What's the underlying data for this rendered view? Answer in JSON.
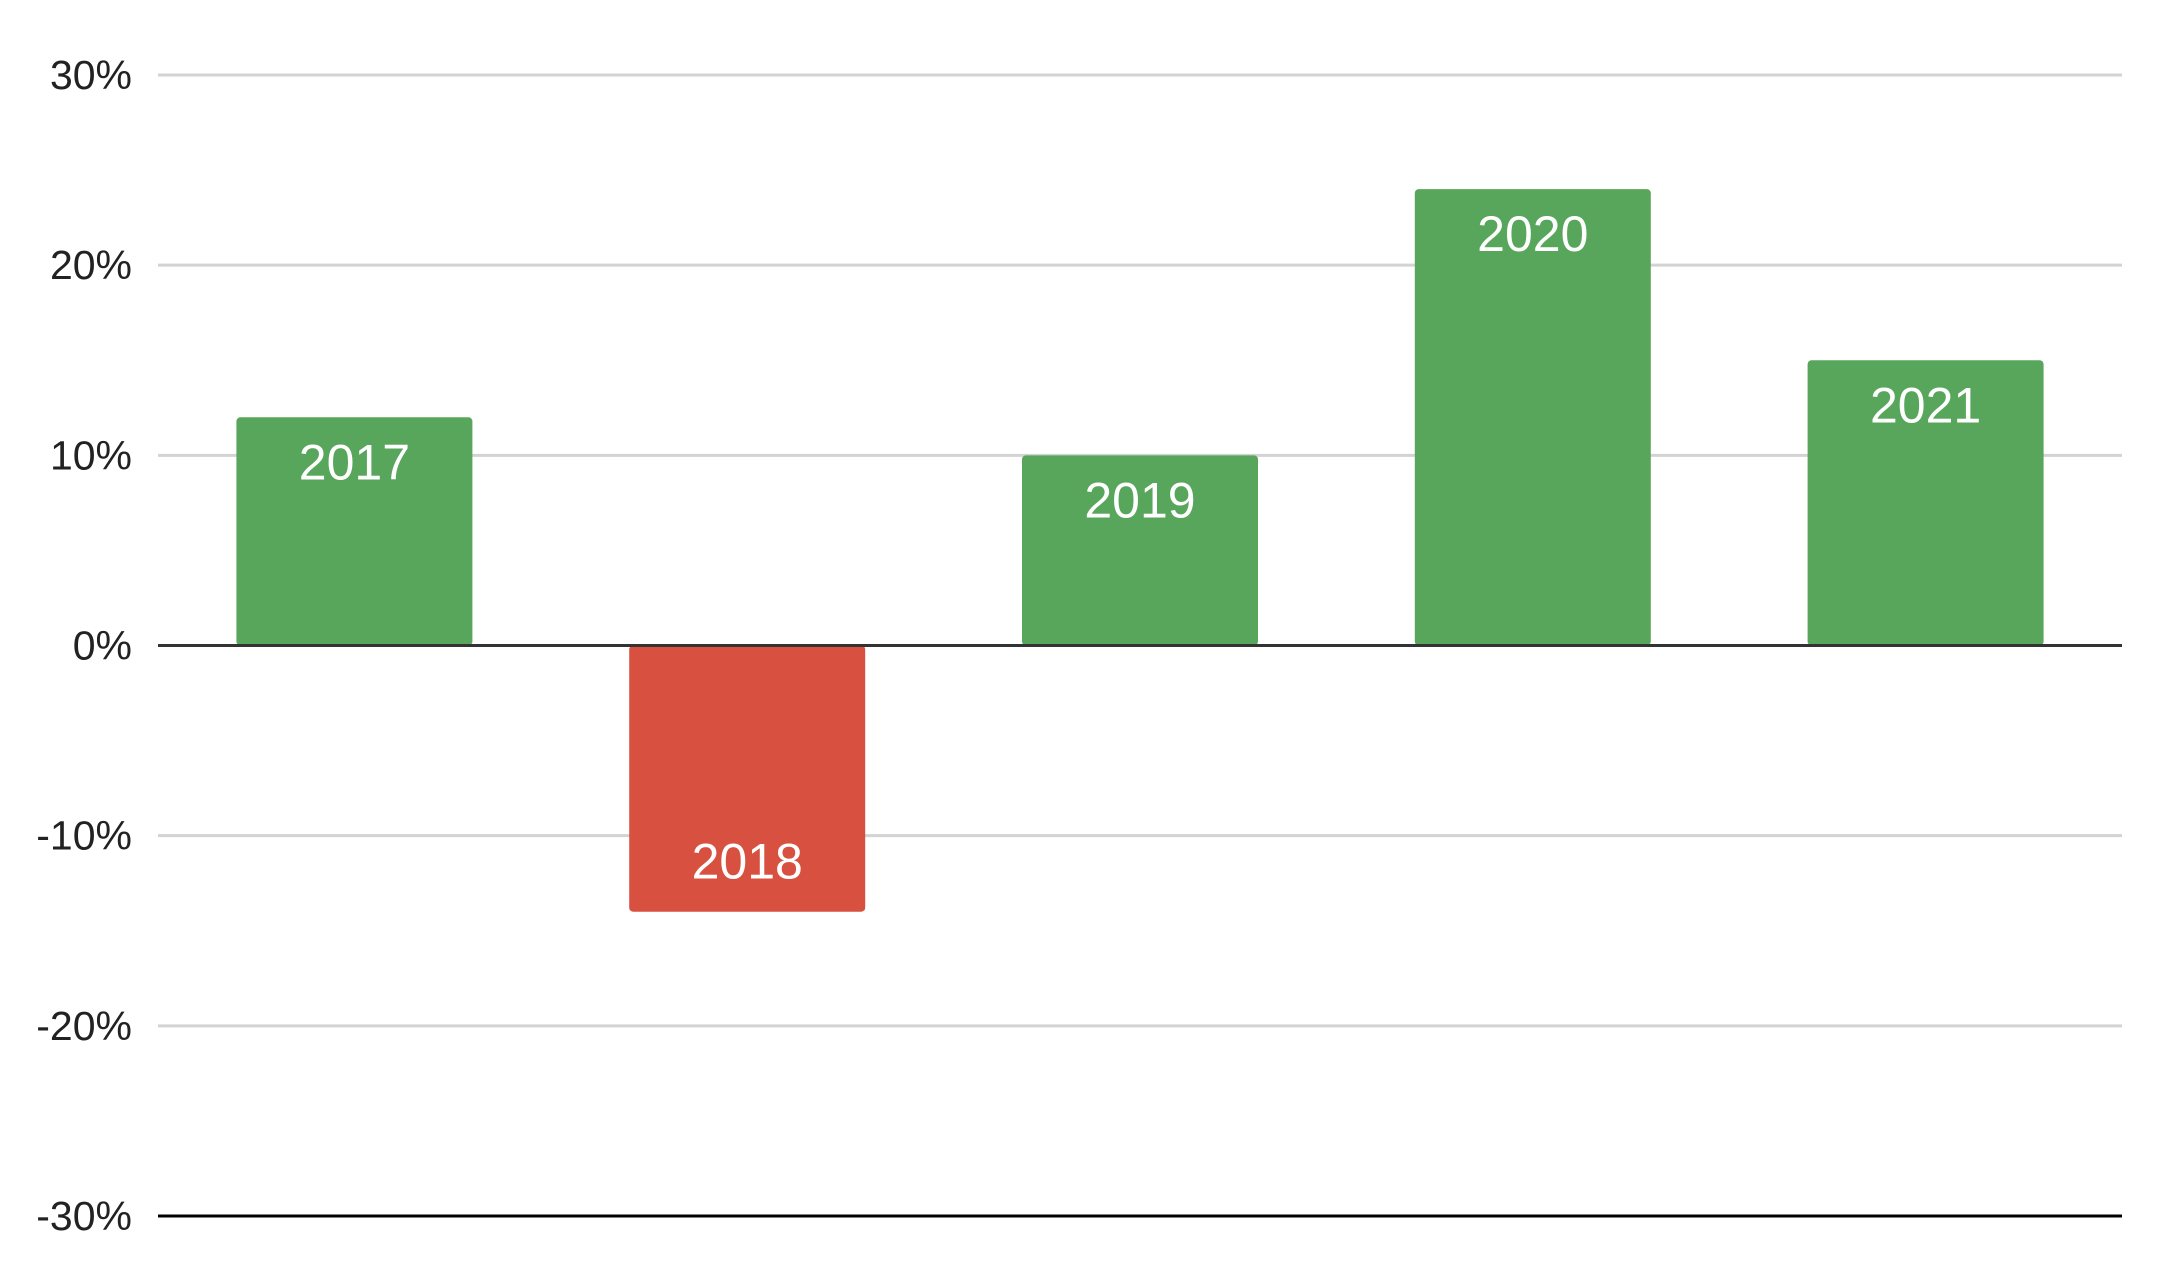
{
  "chart_data": {
    "type": "bar",
    "categories": [
      "2017",
      "2018",
      "2019",
      "2020",
      "2021"
    ],
    "values": [
      12,
      -14,
      10,
      24,
      15
    ],
    "ylim": [
      -30,
      30
    ],
    "yticks": [
      30,
      20,
      10,
      0,
      -10,
      -20,
      -30
    ],
    "ytick_labels": [
      "30%",
      "20%",
      "10%",
      "0%",
      "-10%",
      "-20%",
      "-30%"
    ],
    "xlabel": "",
    "ylabel": "",
    "title": "",
    "grid": true,
    "legend": "none",
    "data_labels": "category inside bar",
    "colors": {
      "positive": "#58a65c",
      "negative": "#d85140",
      "gridline": "#d3d3d3",
      "zero_line": "#333333",
      "axis_line": "#000000"
    }
  }
}
